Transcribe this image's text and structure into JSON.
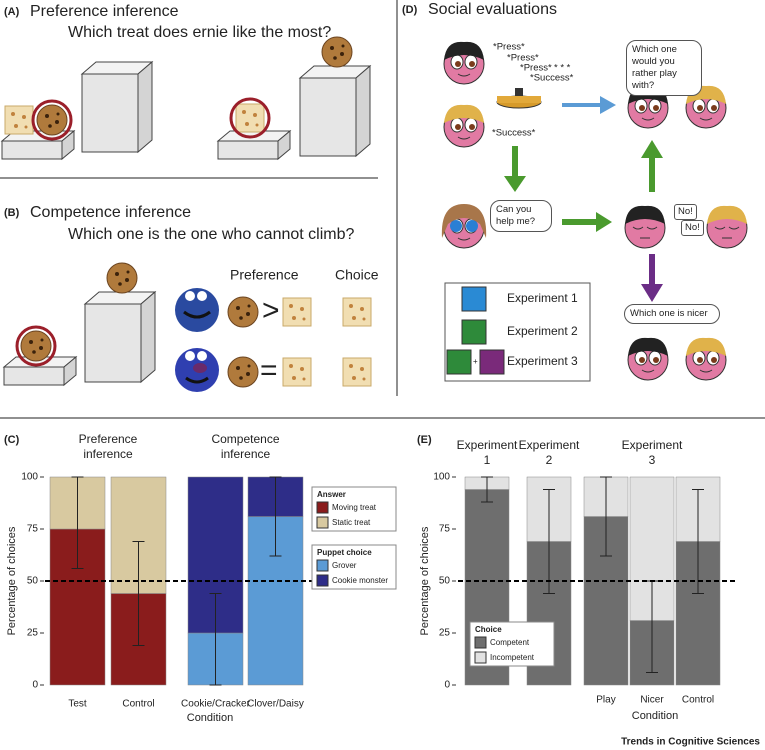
{
  "panels": {
    "a": {
      "label": "(A)",
      "title": "Preference inference",
      "question": "Which treat does ernie like the most?"
    },
    "b": {
      "label": "(B)",
      "title": "Competence inference",
      "question": "Which one is the one who cannot climb?",
      "col1": "Preference",
      "col2": "Choice",
      "sym1": ">",
      "sym2": "="
    },
    "d": {
      "label": "(D)",
      "title": "Social evaluations",
      "sounds": [
        "*Press*",
        "*Press*",
        "*Press*",
        "* * *",
        "*Success*",
        "*Success*"
      ],
      "bubbles": [
        "Which one would you rather play with?",
        "Can you help me?",
        "No!",
        "No!",
        "Which one is nicer"
      ],
      "legend": [
        "Experiment 1",
        "Experiment 2",
        "Experiment 3"
      ],
      "plus": "+"
    }
  },
  "chart_data": [
    {
      "type": "stacked-bar",
      "label": "(C)",
      "ylabel": "Percentage of choices",
      "xlabel": "Condition",
      "ylim": [
        0,
        100
      ],
      "yticks": [
        0,
        25,
        50,
        75,
        100
      ],
      "hline": 50,
      "groups": [
        {
          "title": "Preference inference",
          "legend_title": "Answer",
          "categories": [
            "Test",
            "Control"
          ],
          "series": [
            {
              "name": "Moving treat",
              "color": "#8a1c1c",
              "values": [
                75,
                44
              ]
            },
            {
              "name": "Static treat",
              "color": "#d8c9a0",
              "values": [
                25,
                56
              ]
            }
          ],
          "ci_low": [
            56,
            19
          ],
          "ci_high": [
            100,
            69
          ]
        },
        {
          "title": "Competence inference",
          "legend_title": "Puppet choice",
          "categories": [
            "Cookie/Cracker",
            "Clover/Daisy"
          ],
          "series": [
            {
              "name": "Grover",
              "color": "#5b9bd5",
              "values": [
                25,
                81
              ]
            },
            {
              "name": "Cookie monster",
              "color": "#2e2d88",
              "values": [
                75,
                19
              ]
            }
          ],
          "ci_low": [
            0,
            62
          ],
          "ci_high": [
            44,
            100
          ]
        }
      ]
    },
    {
      "type": "stacked-bar",
      "label": "(E)",
      "ylabel": "Percentage of choices",
      "xlabel": "Condition",
      "ylim": [
        0,
        100
      ],
      "yticks": [
        0,
        25,
        50,
        75,
        100
      ],
      "hline": 50,
      "legend_title": "Choice",
      "groups": [
        {
          "title": "Experiment 1",
          "categories": [
            null
          ],
          "series": [
            {
              "name": "Competent",
              "color": "#6e6e6e",
              "values": [
                94
              ]
            },
            {
              "name": "Incompetent",
              "color": "#e2e2e2",
              "values": [
                6
              ]
            }
          ],
          "ci_low": [
            88
          ],
          "ci_high": [
            100
          ]
        },
        {
          "title": "Experiment 2",
          "categories": [
            null
          ],
          "series": [
            {
              "name": "Competent",
              "color": "#6e6e6e",
              "values": [
                69
              ]
            },
            {
              "name": "Incompetent",
              "color": "#e2e2e2",
              "values": [
                31
              ]
            }
          ],
          "ci_low": [
            44
          ],
          "ci_high": [
            94
          ]
        },
        {
          "title": "Experiment 3",
          "categories": [
            "Play",
            "Nicer",
            "Control"
          ],
          "series": [
            {
              "name": "Competent",
              "color": "#6e6e6e",
              "values": [
                81,
                31,
                69
              ]
            },
            {
              "name": "Incompetent",
              "color": "#e2e2e2",
              "values": [
                19,
                69,
                31
              ]
            }
          ],
          "ci_low": [
            62,
            6,
            44
          ],
          "ci_high": [
            100,
            50,
            94
          ]
        }
      ]
    }
  ],
  "footer": "Trends in Cognitive Sciences"
}
